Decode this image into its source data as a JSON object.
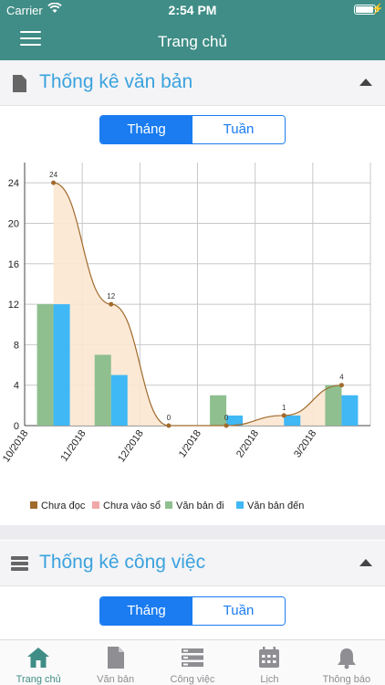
{
  "status_bar": {
    "carrier": "Carrier",
    "time": "2:54 PM"
  },
  "nav": {
    "title": "Trang chủ"
  },
  "section1": {
    "title": "Thống kê văn bản",
    "seg": [
      "Tháng",
      "Tuần"
    ],
    "icon": "document-icon"
  },
  "section2": {
    "title": "Thống kê công việc",
    "seg": [
      "Tháng",
      "Tuần"
    ],
    "icon": "list-icon"
  },
  "chart_data": {
    "type": "bar",
    "categories": [
      "10/2018",
      "11/2018",
      "12/2018",
      "1/2018",
      "2/2018",
      "3/2018"
    ],
    "ylim": [
      0,
      26
    ],
    "yticks": [
      0,
      4,
      8,
      12,
      16,
      20,
      24
    ],
    "series": [
      {
        "name": "Chưa đọc",
        "kind": "area-line",
        "color": "#a06a2c",
        "fill": "#fbe7d2",
        "values": [
          24,
          12,
          0,
          0,
          1,
          4
        ],
        "labels": [
          "24",
          "12",
          "0",
          "0",
          "1",
          "4"
        ]
      },
      {
        "name": "Chưa vào sổ",
        "kind": "bar",
        "color": "#f0a8a8",
        "values": [
          0,
          0,
          0,
          0,
          0,
          0
        ]
      },
      {
        "name": "Văn bản đi",
        "kind": "bar",
        "color": "#8fbf8f",
        "values": [
          12,
          7,
          0,
          3,
          0,
          4
        ]
      },
      {
        "name": "Văn bản đến",
        "kind": "bar",
        "color": "#3fb8f5",
        "values": [
          12,
          5,
          0,
          1,
          1,
          3
        ]
      }
    ],
    "legend_position": "bottom-left"
  },
  "tabs": [
    {
      "label": "Trang chủ",
      "icon": "home-icon",
      "active": true
    },
    {
      "label": "Văn bản",
      "icon": "document-icon",
      "active": false
    },
    {
      "label": "Công việc",
      "icon": "tasks-icon",
      "active": false
    },
    {
      "label": "Lịch",
      "icon": "calendar-icon",
      "active": false
    },
    {
      "label": "Thông báo",
      "icon": "bell-icon",
      "active": false
    }
  ],
  "colors": {
    "primary": "#3f8d86",
    "accent": "#3aa2de",
    "segment": "#1a7cf0"
  }
}
